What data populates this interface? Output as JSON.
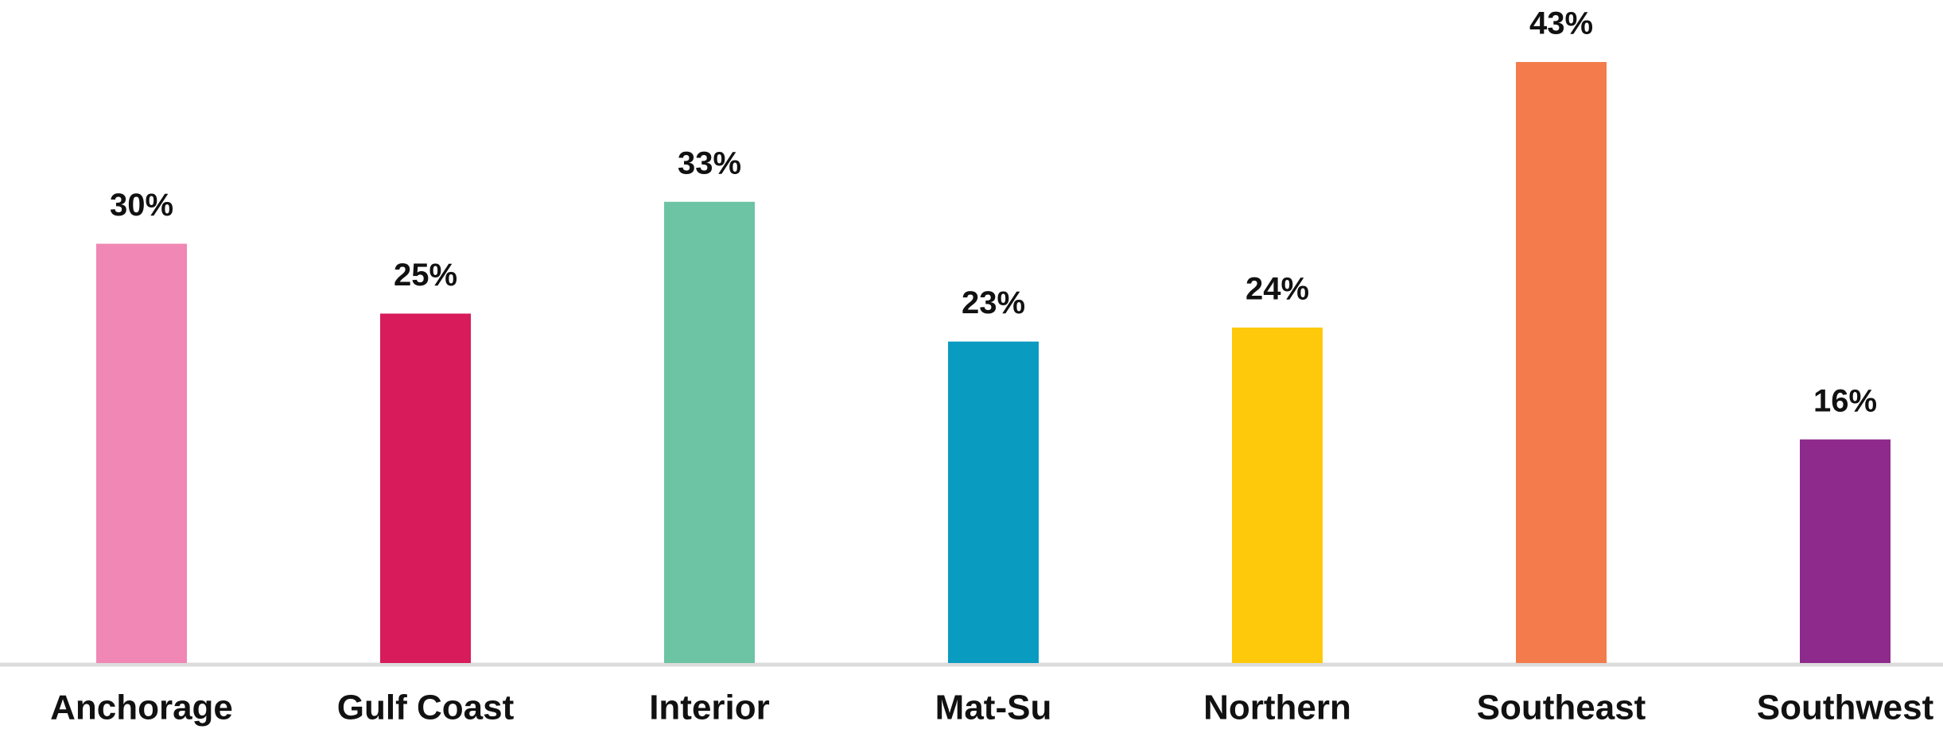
{
  "chart_data": {
    "type": "bar",
    "categories": [
      "Anchorage",
      "Gulf Coast",
      "Interior",
      "Mat-Su",
      "Northern",
      "Southeast",
      "Southwest"
    ],
    "values": [
      30,
      25,
      33,
      23,
      24,
      43,
      16
    ],
    "value_labels": [
      "30%",
      "25%",
      "33%",
      "23%",
      "24%",
      "43%",
      "16%"
    ],
    "colors": [
      "#f087b4",
      "#d81b5a",
      "#6cc4a4",
      "#0a9bc1",
      "#fdc90a",
      "#f47c4c",
      "#8e2a8c"
    ],
    "grid": false
  }
}
